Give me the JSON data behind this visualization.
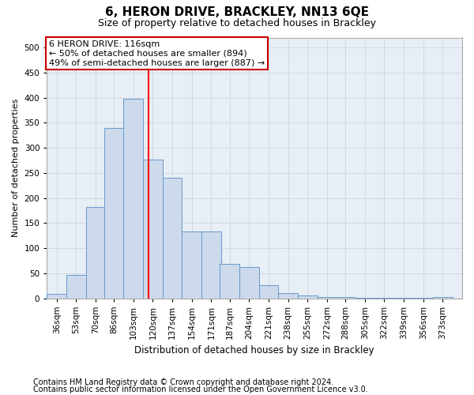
{
  "title": "6, HERON DRIVE, BRACKLEY, NN13 6QE",
  "subtitle": "Size of property relative to detached houses in Brackley",
  "xlabel": "Distribution of detached houses by size in Brackley",
  "ylabel": "Number of detached properties",
  "footnote1": "Contains HM Land Registry data © Crown copyright and database right 2024.",
  "footnote2": "Contains public sector information licensed under the Open Government Licence v3.0.",
  "categories": [
    "36sqm",
    "53sqm",
    "70sqm",
    "86sqm",
    "103sqm",
    "120sqm",
    "137sqm",
    "154sqm",
    "171sqm",
    "187sqm",
    "204sqm",
    "221sqm",
    "238sqm",
    "255sqm",
    "272sqm",
    "288sqm",
    "305sqm",
    "322sqm",
    "339sqm",
    "356sqm",
    "373sqm"
  ],
  "values": [
    8,
    46,
    182,
    340,
    398,
    276,
    240,
    133,
    133,
    68,
    62,
    26,
    11,
    5,
    3,
    2,
    1,
    1,
    1,
    1,
    3
  ],
  "bar_color": "#ccdaeb",
  "bar_edge_color": "#6699cc",
  "grid_color": "#d0d8e4",
  "annotation_line_color": "red",
  "annotation_text_line1": "6 HERON DRIVE: 116sqm",
  "annotation_text_line2": "← 50% of detached houses are smaller (894)",
  "annotation_text_line3": "49% of semi-detached houses are larger (887) →",
  "annotation_box_facecolor": "white",
  "annotation_box_edgecolor": "#cc0000",
  "ylim": [
    0,
    520
  ],
  "bin_width": 17,
  "background_color": "#ffffff",
  "plot_bg_color": "#e8eef5",
  "title_fontsize": 11,
  "subtitle_fontsize": 9,
  "axis_label_fontsize": 8,
  "tick_fontsize": 7.5,
  "footnote_fontsize": 7,
  "annotation_fontsize": 8
}
